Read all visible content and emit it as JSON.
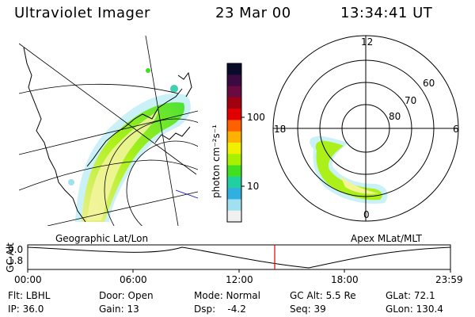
{
  "header": {
    "title": "Ultraviolet Imager",
    "date": "23 Mar 00",
    "time": "13:34:41 UT"
  },
  "colorbar": {
    "unit_label": "photon cm⁻²s⁻¹",
    "ticks": [
      "100",
      "10"
    ],
    "colors": [
      "#0a0a2a",
      "#3a0a40",
      "#6a0a40",
      "#a00010",
      "#e00000",
      "#ff6000",
      "#ffb000",
      "#f0f000",
      "#a8f000",
      "#40e020",
      "#20d0a0",
      "#30b0e0",
      "#a0e0f0",
      "#f0f0f0"
    ]
  },
  "polar_plot": {
    "mlt_labels": {
      "top": "12",
      "left": "18",
      "right": "6",
      "bottom": "0"
    },
    "lat_labels": [
      "60",
      "70",
      "80"
    ],
    "caption": "Apex MLat/MLT"
  },
  "geo_plot": {
    "caption": "Geographic Lat/Lon"
  },
  "timeline": {
    "y_label": "GC Alt",
    "y_ticks": [
      "9.0",
      "1.8"
    ],
    "x_ticks": [
      "00:00",
      "06:00",
      "12:00",
      "18:00",
      "23:59"
    ],
    "current_marker_color": "#e00000"
  },
  "status": {
    "flt": "Flt: LBHL",
    "door": "Door: Open",
    "mode": "Mode: Normal",
    "gc_alt": "GC Alt: 5.5 Re",
    "glat": "GLat: 72.1",
    "ip": "IP: 36.0",
    "gain": "Gain: 13",
    "dsp": "Dsp:    -4.2",
    "seq": "Seq: 39",
    "glon": "GLon: 130.4"
  }
}
